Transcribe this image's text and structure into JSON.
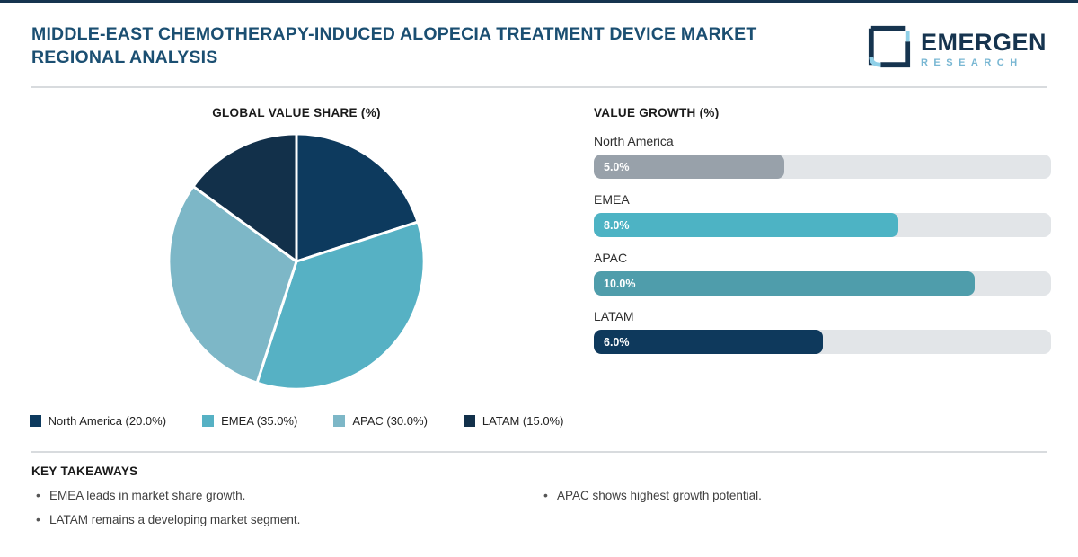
{
  "header": {
    "title": "MIDDLE-EAST CHEMOTHERAPY-INDUCED ALOPECIA TREATMENT DEVICE MARKET REGIONAL ANALYSIS",
    "logo": {
      "name": "EMERGEN",
      "sub": "RESEARCH"
    }
  },
  "chart_data": [
    {
      "type": "pie",
      "title": "GLOBAL VALUE SHARE (%)",
      "categories": [
        "North America",
        "EMEA",
        "APAC",
        "LATAM"
      ],
      "values": [
        20.0,
        35.0,
        30.0,
        15.0
      ],
      "colors": [
        "#0d3a5e",
        "#56b1c4",
        "#7db7c7",
        "#12304a"
      ],
      "legend_labels": [
        "North America (20.0%)",
        "EMEA (35.0%)",
        "APAC (30.0%)",
        "LATAM (15.0%)"
      ],
      "legend_position": "bottom",
      "start_angle_deg": -90,
      "direction": "clockwise",
      "slice_gap_color": "#ffffff"
    },
    {
      "type": "bar",
      "orientation": "horizontal",
      "title": "VALUE GROWTH (%)",
      "categories": [
        "North America",
        "EMEA",
        "APAC",
        "LATAM"
      ],
      "values": [
        5.0,
        8.0,
        10.0,
        6.0
      ],
      "value_labels": [
        "5.0%",
        "8.0%",
        "10.0%",
        "6.0%"
      ],
      "colors": [
        "#98a1aa",
        "#4db3c4",
        "#4f9dab",
        "#0e395c"
      ],
      "xlim": [
        0,
        12
      ],
      "track_color": "#e2e5e8",
      "grid": false
    }
  ],
  "takeaways": {
    "title": "KEY TAKEAWAYS",
    "items_left": [
      "EMEA leads in market share growth.",
      "LATAM remains a developing market segment."
    ],
    "items_right": [
      "APAC shows highest growth potential."
    ]
  }
}
